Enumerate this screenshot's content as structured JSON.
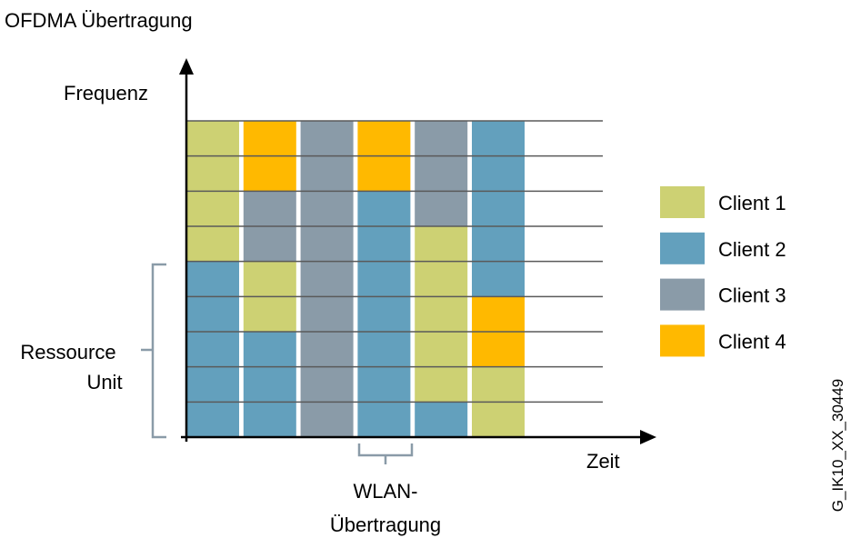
{
  "header": {
    "title": "OFDMA Übertragung"
  },
  "axes": {
    "y_label": "Frequenz",
    "x_label": "Zeit"
  },
  "annotations": {
    "resource_unit": [
      "Ressource",
      "Unit"
    ],
    "wlan": [
      "WLAN-",
      "Übertragung"
    ]
  },
  "legend": [
    {
      "label": "Client 1",
      "color": "#cdd173"
    },
    {
      "label": "Client 2",
      "color": "#63a0bd"
    },
    {
      "label": "Client 3",
      "color": "#8a9ba8"
    },
    {
      "label": "Client 4",
      "color": "#ffb900"
    }
  ],
  "figure_id": "G_IK10_XX_30449"
}
